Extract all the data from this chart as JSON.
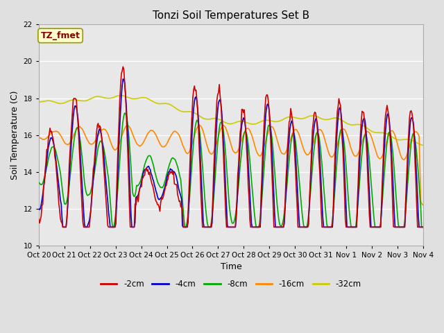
{
  "title": "Tonzi Soil Temperatures Set B",
  "xlabel": "Time",
  "ylabel": "Soil Temperature (C)",
  "ylim": [
    10,
    22
  ],
  "yticks": [
    10,
    12,
    14,
    16,
    18,
    20,
    22
  ],
  "series_colors": {
    "-2cm": "#cc0000",
    "-4cm": "#0000cc",
    "-8cm": "#00aa00",
    "-16cm": "#ff8800",
    "-32cm": "#cccc00"
  },
  "legend_colors": [
    "#cc0000",
    "#0000cc",
    "#00aa00",
    "#ff8800",
    "#cccc00"
  ],
  "legend_labels": [
    "-2cm",
    "-4cm",
    "-8cm",
    "-16cm",
    "-32cm"
  ],
  "annotation_text": "TZ_fmet",
  "annotation_color": "#880000",
  "annotation_bg": "#ffffcc",
  "fig_bg": "#e0e0e0",
  "axes_bg": "#e8e8e8",
  "tick_dates": [
    "Oct 20",
    "Oct 21",
    "Oct 22",
    "Oct 23",
    "Oct 24",
    "Oct 25",
    "Oct 26",
    "Oct 27",
    "Oct 28",
    "Oct 29",
    "Oct 30",
    "Oct 31",
    "Nov 1",
    "Nov 2",
    "Nov 3",
    "Nov 4"
  ]
}
